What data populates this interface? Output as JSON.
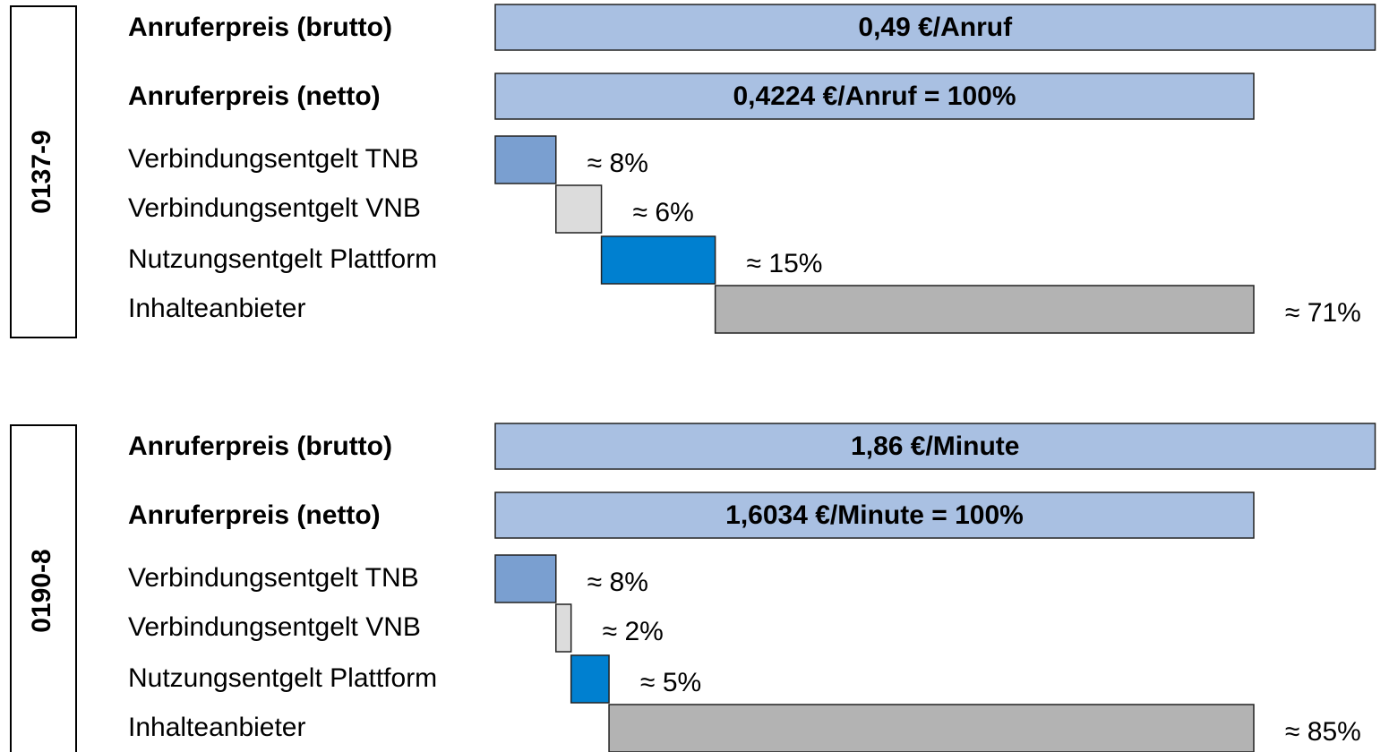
{
  "chart_data": [
    {
      "type": "waterfall",
      "title": "0137-9",
      "totals": [
        {
          "name": "Anruferpreis (brutto)",
          "value": 116,
          "label": "0,49 €/Anruf"
        },
        {
          "name": "Anruferpreis (netto)",
          "value": 100,
          "label": "0,4224 €/Anruf = 100%"
        }
      ],
      "total_color": "#a9c0e2",
      "categories": [
        "Verbindungsentgelt TNB",
        "Verbindungsentgelt VNB",
        "Nutzungsentgelt Plattform",
        "Inhalteanbieter"
      ],
      "values": [
        8,
        6,
        15,
        71
      ],
      "value_labels": [
        "≈ 8%",
        "≈ 6%",
        "≈ 15%",
        "≈ 71%"
      ],
      "colors": [
        "#7a9fd0",
        "#dcdcdc",
        "#0080d0",
        "#b3b3b3"
      ]
    },
    {
      "type": "waterfall",
      "title": "0190-8",
      "totals": [
        {
          "name": "Anruferpreis (brutto)",
          "value": 116,
          "label": "1,86 €/Minute"
        },
        {
          "name": "Anruferpreis (netto)",
          "value": 100,
          "label": "1,6034 €/Minute = 100%"
        }
      ],
      "total_color": "#a9c0e2",
      "categories": [
        "Verbindungsentgelt TNB",
        "Verbindungsentgelt VNB",
        "Nutzungsentgelt Plattform",
        "Inhalteanbieter"
      ],
      "values": [
        8,
        2,
        5,
        85
      ],
      "value_labels": [
        "≈ 8%",
        "≈ 2%",
        "≈ 5%",
        "≈ 85%"
      ],
      "colors": [
        "#7a9fd0",
        "#dcdcdc",
        "#0080d0",
        "#b3b3b3"
      ]
    }
  ]
}
